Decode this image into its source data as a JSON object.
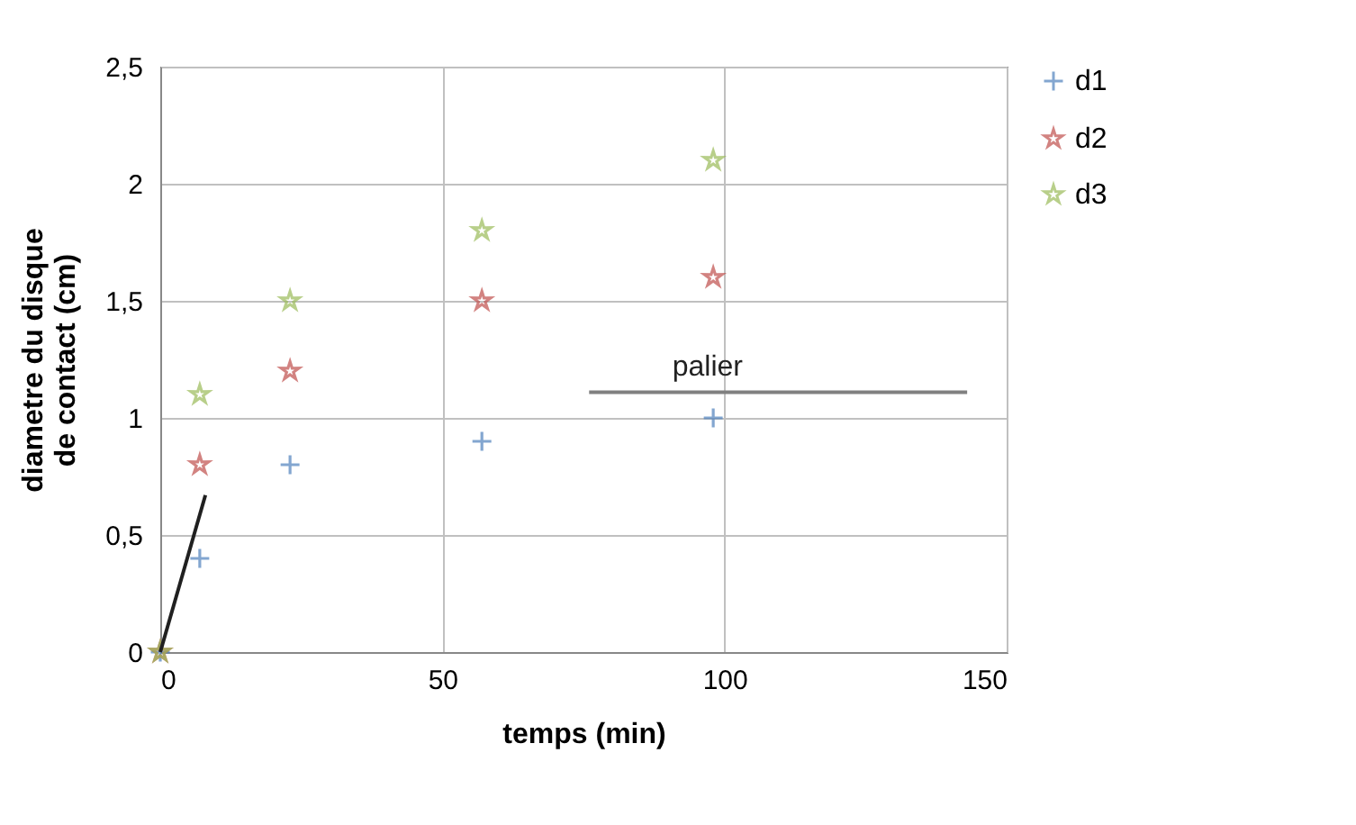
{
  "chart_data": {
    "type": "scatter",
    "xlabel": "temps (min)",
    "ylabel": "diametre du disque de contact (cm)",
    "xlim": [
      0,
      150
    ],
    "xticks": [
      0,
      50,
      100,
      150
    ],
    "ylim": [
      0,
      2.5
    ],
    "yticks": [
      0,
      {
        "value": 0.5,
        "label": "0,5"
      },
      1,
      {
        "value": 1.5,
        "label": "1,5"
      },
      2,
      {
        "value": 2.5,
        "label": "2,5"
      }
    ],
    "grid": true,
    "legend": "right",
    "x": [
      0,
      7,
      23,
      57,
      98
    ],
    "series": [
      {
        "name": "d1",
        "color": "#4f81bd",
        "marker": "cross",
        "values": [
          0,
          0.4,
          0.8,
          0.9,
          1.0
        ]
      },
      {
        "name": "d2",
        "color": "#c0504d",
        "marker": "star",
        "values": [
          0,
          0.8,
          1.2,
          1.5,
          1.6
        ]
      },
      {
        "name": "d3",
        "color": "#9bbb59",
        "marker": "star",
        "values": [
          0,
          1.1,
          1.5,
          1.8,
          2.1
        ]
      },
      {
        "type": "line",
        "color": "#202020",
        "x": [
          0,
          8
        ],
        "values": [
          0,
          0.67
        ]
      },
      {
        "type": "line",
        "color": "#808080",
        "x": [
          76,
          143
        ],
        "values": [
          1.11,
          1.11
        ]
      }
    ],
    "annotations": [
      {
        "text": "palier",
        "x": 97,
        "y": 1.11
      }
    ]
  }
}
